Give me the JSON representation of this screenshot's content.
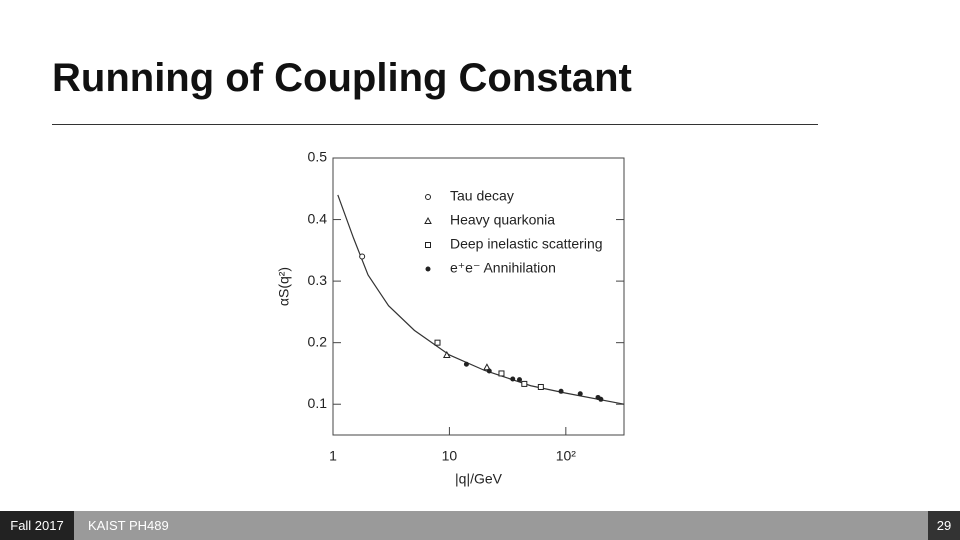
{
  "header": {
    "title": "Running of Coupling Constant"
  },
  "chart_data": {
    "type": "scatter",
    "x_label": "|q|/GeV",
    "y_label": "αS(q²)",
    "xlog": true,
    "xlim": [
      1,
      316
    ],
    "ylim": [
      0.05,
      0.5
    ],
    "xticks": [
      1,
      10,
      {
        "value": 100,
        "label": "10²"
      }
    ],
    "yticks": [
      0.1,
      0.2,
      0.3,
      0.4,
      0.5
    ],
    "series": [
      {
        "name": "Tau decay",
        "marker": "open-circle",
        "color": "#222",
        "x": [
          1.78
        ],
        "values": [
          0.34
        ]
      },
      {
        "name": "Heavy quarkonia",
        "marker": "triangle",
        "color": "#222",
        "x": [
          9.5,
          21
        ],
        "values": [
          0.18,
          0.16
        ]
      },
      {
        "name": "Deep inelastic scattering",
        "marker": "open-square",
        "color": "#222",
        "x": [
          7.9,
          28,
          44,
          61
        ],
        "values": [
          0.2,
          0.15,
          0.133,
          0.128
        ]
      },
      {
        "name": "e⁺e⁻ Annihilation",
        "marker": "dot",
        "color": "#222",
        "x": [
          14,
          22,
          35,
          40,
          91,
          133,
          189,
          200
        ],
        "values": [
          0.165,
          0.154,
          0.141,
          0.14,
          0.121,
          0.117,
          0.111,
          0.108
        ]
      }
    ],
    "curve": {
      "color": "#333",
      "x": [
        1.1,
        1.5,
        2,
        3,
        5,
        10,
        20,
        50,
        100,
        316
      ],
      "values": [
        0.44,
        0.37,
        0.31,
        0.26,
        0.22,
        0.18,
        0.155,
        0.13,
        0.118,
        0.1
      ]
    }
  },
  "footer": {
    "term": "Fall 2017",
    "course": "KAIST PH489",
    "page": 29
  }
}
